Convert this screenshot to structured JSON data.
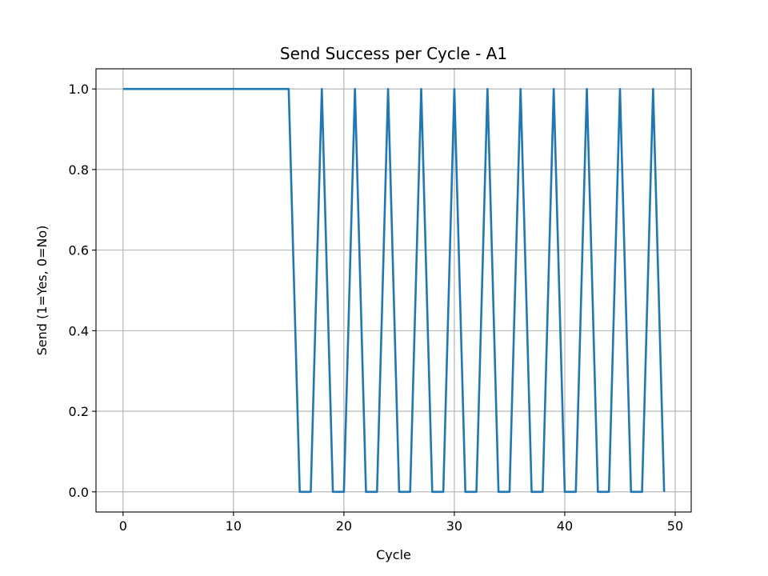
{
  "chart_data": {
    "type": "line",
    "title": "Send Success per Cycle - A1",
    "xlabel": "Cycle",
    "ylabel": "Send (1=Yes, 0=No)",
    "xlim": [
      -2.45,
      51.45
    ],
    "ylim": [
      -0.05,
      1.05
    ],
    "xticks": [
      0,
      10,
      20,
      30,
      40,
      50
    ],
    "yticks": [
      0.0,
      0.2,
      0.4,
      0.6,
      0.8,
      1.0
    ],
    "xtick_labels": [
      "0",
      "10",
      "20",
      "30",
      "40",
      "50"
    ],
    "ytick_labels": [
      "0.0",
      "0.2",
      "0.4",
      "0.6",
      "0.8",
      "1.0"
    ],
    "grid": true,
    "series": [
      {
        "color": "#1f77b4",
        "x": [
          0,
          1,
          2,
          3,
          4,
          5,
          6,
          7,
          8,
          9,
          10,
          11,
          12,
          13,
          14,
          15,
          16,
          17,
          18,
          19,
          20,
          21,
          22,
          23,
          24,
          25,
          26,
          27,
          28,
          29,
          30,
          31,
          32,
          33,
          34,
          35,
          36,
          37,
          38,
          39,
          40,
          41,
          42,
          43,
          44,
          45,
          46,
          47,
          48,
          49
        ],
        "y": [
          1,
          1,
          1,
          1,
          1,
          1,
          1,
          1,
          1,
          1,
          1,
          1,
          1,
          1,
          1,
          1,
          0,
          0,
          1,
          0,
          0,
          1,
          0,
          0,
          1,
          0,
          0,
          1,
          0,
          0,
          1,
          0,
          0,
          1,
          0,
          0,
          1,
          0,
          0,
          1,
          0,
          0,
          1,
          0,
          0,
          1,
          0,
          0,
          1,
          0
        ]
      }
    ]
  }
}
